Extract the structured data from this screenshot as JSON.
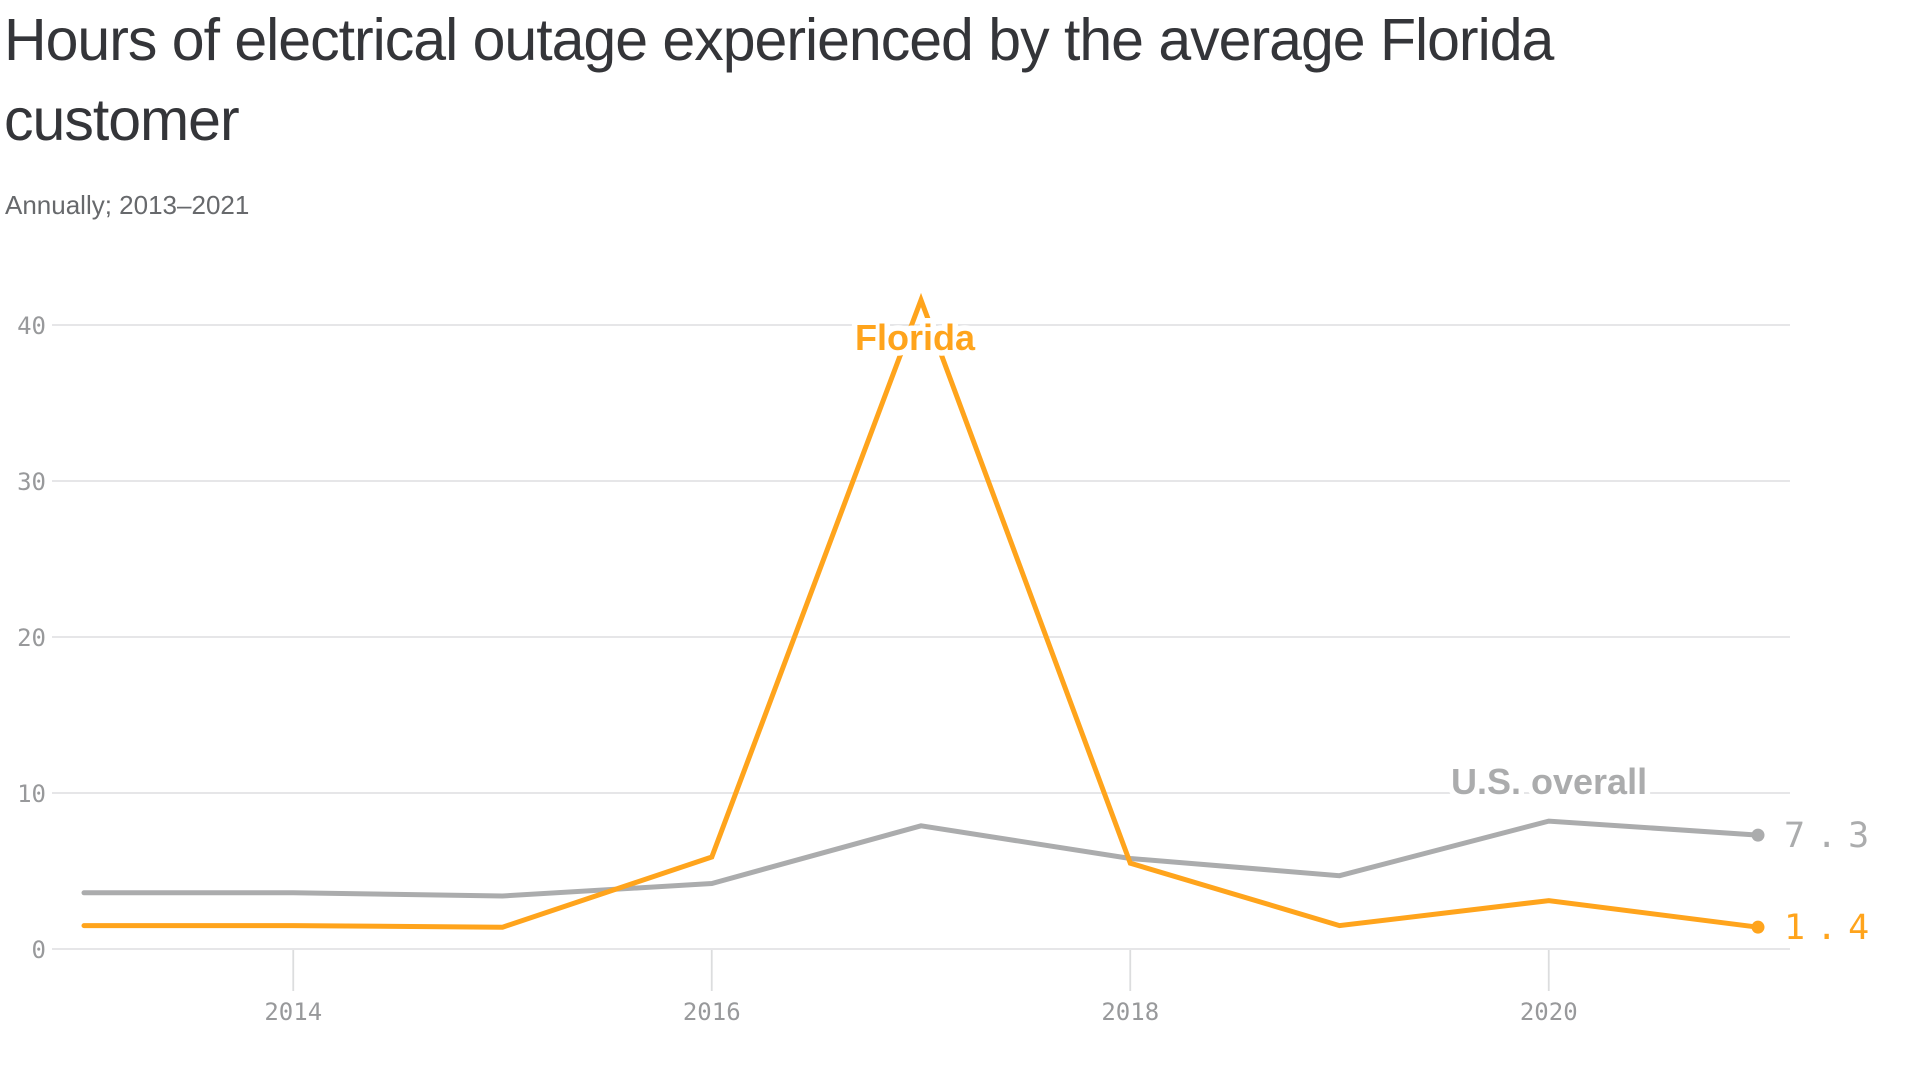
{
  "header": {
    "title_line1": "Hours of electrical outage experienced by the average Florida",
    "title_line2": "customer",
    "subtitle": "Annually; 2013–2021"
  },
  "chart_data": {
    "type": "line",
    "title": "Hours of electrical outage experienced by the average Florida customer",
    "subtitle": "Annually; 2013–2021",
    "x": [
      2013,
      2014,
      2015,
      2016,
      2017,
      2018,
      2019,
      2020,
      2021
    ],
    "series": [
      {
        "name": "U.S. overall",
        "color": "#ABACAD",
        "values": [
          3.6,
          3.6,
          3.4,
          4.2,
          7.9,
          5.8,
          4.7,
          8.2,
          7.3
        ],
        "end_label": "7.3"
      },
      {
        "name": "Florida",
        "color": "#FFA41C",
        "values": [
          1.5,
          1.5,
          1.4,
          5.9,
          41.6,
          5.5,
          1.5,
          3.1,
          1.4
        ],
        "end_label": "1.4"
      }
    ],
    "y_ticks": [
      0,
      10,
      20,
      30,
      40
    ],
    "x_ticks": [
      2014,
      2016,
      2018,
      2020
    ],
    "ylim": [
      0,
      42
    ],
    "xlim": [
      2013,
      2021
    ],
    "grid": "horizontal-only",
    "legend": "inline-series-labels"
  },
  "colors": {
    "background": "#ffffff",
    "title_text": "#343539",
    "subtitle_text": "#67696c",
    "axis_text": "#98999b",
    "gridline": "#e2e3e4",
    "us_line": "#ABACAD",
    "florida_line": "#FFA41C"
  }
}
